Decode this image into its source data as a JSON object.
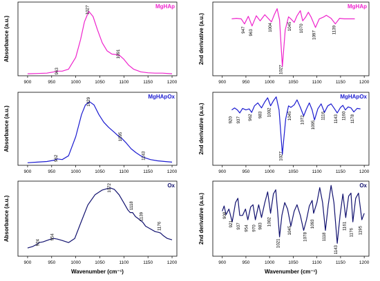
{
  "chart_data": [
    {
      "id": "p1",
      "type": "line",
      "title": "MgHAp",
      "ylabel": "Absorbance (a.u.)",
      "xlabel": "",
      "color": "#ee22cc",
      "xlim": [
        880,
        1210
      ],
      "ylim": [
        0,
        1.12
      ],
      "xticks": [
        900,
        950,
        1000,
        1050,
        1100,
        1150,
        1200
      ],
      "annotations": [
        {
          "label": "963",
          "x": 963,
          "y": 0.07
        },
        {
          "label": "1027",
          "x": 1027,
          "y": 1.0
        },
        {
          "label": "1091",
          "x": 1091,
          "y": 0.33
        }
      ],
      "series": [
        {
          "x": [
            900,
            920,
            940,
            955,
            963,
            972,
            985,
            1000,
            1010,
            1018,
            1027,
            1036,
            1045,
            1055,
            1065,
            1075,
            1085,
            1091,
            1100,
            1110,
            1120,
            1135,
            1150,
            1165,
            1180,
            1200
          ],
          "y": [
            0.03,
            0.035,
            0.04,
            0.06,
            0.07,
            0.07,
            0.1,
            0.28,
            0.55,
            0.82,
            0.98,
            0.9,
            0.7,
            0.5,
            0.38,
            0.33,
            0.32,
            0.31,
            0.25,
            0.16,
            0.1,
            0.06,
            0.045,
            0.04,
            0.04,
            0.03
          ]
        }
      ]
    },
    {
      "id": "p2",
      "type": "line",
      "title": "MgHAp",
      "ylabel": "2nd derivative (a.u.)",
      "xlabel": "",
      "color": "#ee22cc",
      "xlim": [
        880,
        1210
      ],
      "ylim": [
        -1.1,
        0.35
      ],
      "xticks": [
        900,
        950,
        1000,
        1050,
        1100,
        1150,
        1200
      ],
      "annotations": [
        {
          "label": "947",
          "x": 947,
          "y": -0.2
        },
        {
          "label": "963",
          "x": 963,
          "y": -0.25
        },
        {
          "label": "1004",
          "x": 1004,
          "y": -0.15
        },
        {
          "label": "1027",
          "x": 1027,
          "y": -0.98
        },
        {
          "label": "1045",
          "x": 1045,
          "y": -0.13
        },
        {
          "label": "1070",
          "x": 1070,
          "y": -0.17
        },
        {
          "label": "1097",
          "x": 1097,
          "y": -0.3
        },
        {
          "label": "1139",
          "x": 1139,
          "y": -0.2
        }
      ],
      "series": [
        {
          "x": [
            920,
            930,
            940,
            947,
            955,
            963,
            972,
            980,
            990,
            997,
            1004,
            1010,
            1016,
            1021,
            1027,
            1033,
            1040,
            1045,
            1052,
            1058,
            1065,
            1070,
            1076,
            1082,
            1088,
            1097,
            1105,
            1113,
            1120,
            1130,
            1139,
            1148,
            1158,
            1168,
            1180
          ],
          "y": [
            0.02,
            0.03,
            0.02,
            -0.08,
            0.07,
            -0.12,
            0.08,
            -0.02,
            0.1,
            0.03,
            -0.04,
            0.1,
            0.22,
            0.0,
            -0.92,
            -0.2,
            0.06,
            0.02,
            -0.05,
            0.08,
            0.18,
            -0.02,
            0.05,
            0.15,
            0.05,
            -0.15,
            0.02,
            0.05,
            0.09,
            0.03,
            -0.08,
            0.03,
            0.02,
            0.02,
            0.02
          ]
        }
      ]
    },
    {
      "id": "p3",
      "type": "line",
      "title": "MgHApOx",
      "ylabel": "Absorbance (a.u.)",
      "xlabel": "",
      "color": "#1a1ad0",
      "xlim": [
        880,
        1210
      ],
      "ylim": [
        0,
        1.15
      ],
      "xticks": [
        900,
        950,
        1000,
        1050,
        1100,
        1150,
        1200
      ],
      "annotations": [
        {
          "label": "962",
          "x": 962,
          "y": 0.11
        },
        {
          "label": "1029",
          "x": 1029,
          "y": 1.0
        },
        {
          "label": "1095",
          "x": 1095,
          "y": 0.45
        },
        {
          "label": "1143",
          "x": 1143,
          "y": 0.15
        }
      ],
      "series": [
        {
          "x": [
            900,
            920,
            940,
            955,
            962,
            972,
            985,
            1000,
            1012,
            1020,
            1029,
            1038,
            1048,
            1058,
            1068,
            1080,
            1090,
            1095,
            1105,
            1115,
            1125,
            1135,
            1143,
            1155,
            1170,
            1185,
            1200
          ],
          "y": [
            0.04,
            0.05,
            0.06,
            0.08,
            0.1,
            0.09,
            0.15,
            0.45,
            0.8,
            0.95,
            1.0,
            0.95,
            0.8,
            0.68,
            0.6,
            0.52,
            0.45,
            0.43,
            0.35,
            0.26,
            0.2,
            0.15,
            0.12,
            0.09,
            0.07,
            0.06,
            0.05
          ]
        }
      ]
    },
    {
      "id": "p4",
      "type": "line",
      "title": "MgHApOx",
      "ylabel": "2nd derivative (a.u.)",
      "xlabel": "",
      "color": "#1a1ad0",
      "xlim": [
        880,
        1210
      ],
      "ylim": [
        -1.1,
        0.35
      ],
      "xticks": [
        900,
        950,
        1000,
        1050,
        1100,
        1150,
        1200
      ],
      "annotations": [
        {
          "label": "920",
          "x": 920,
          "y": -0.2
        },
        {
          "label": "937",
          "x": 937,
          "y": -0.2
        },
        {
          "label": "962",
          "x": 962,
          "y": -0.15
        },
        {
          "label": "983",
          "x": 983,
          "y": -0.1
        },
        {
          "label": "1002",
          "x": 1002,
          "y": -0.05
        },
        {
          "label": "1027",
          "x": 1027,
          "y": -0.92
        },
        {
          "label": "1045",
          "x": 1045,
          "y": -0.12
        },
        {
          "label": "1072",
          "x": 1072,
          "y": -0.2
        },
        {
          "label": "1095",
          "x": 1095,
          "y": -0.3
        },
        {
          "label": "1116",
          "x": 1116,
          "y": -0.12
        },
        {
          "label": "1143",
          "x": 1143,
          "y": -0.18
        },
        {
          "label": "1160",
          "x": 1160,
          "y": -0.12
        },
        {
          "label": "1178",
          "x": 1178,
          "y": -0.18
        }
      ],
      "series": [
        {
          "x": [
            920,
            926,
            932,
            937,
            943,
            950,
            957,
            962,
            968,
            975,
            983,
            990,
            996,
            1002,
            1008,
            1014,
            1020,
            1027,
            1034,
            1040,
            1045,
            1052,
            1058,
            1065,
            1072,
            1078,
            1084,
            1090,
            1095,
            1102,
            1109,
            1116,
            1123,
            1130,
            1136,
            1143,
            1150,
            1155,
            1160,
            1166,
            1172,
            1178,
            1185,
            1192
          ],
          "y": [
            0.0,
            0.04,
            0.0,
            -0.06,
            0.03,
            0.0,
            0.02,
            -0.05,
            0.08,
            0.14,
            0.04,
            0.16,
            0.24,
            0.08,
            0.18,
            0.26,
            0.0,
            -0.88,
            -0.18,
            0.08,
            0.05,
            0.1,
            0.2,
            0.05,
            -0.12,
            0.02,
            0.14,
            0.0,
            -0.2,
            0.02,
            0.12,
            -0.05,
            0.08,
            0.12,
            0.04,
            -0.06,
            0.05,
            0.09,
            0.0,
            0.06,
            0.04,
            -0.04,
            0.03,
            0.02
          ]
        }
      ]
    },
    {
      "id": "p5",
      "type": "line",
      "title": "Ox",
      "ylabel": "Absorbance (a.u.)",
      "xlabel": "Wavenumber (cm⁻¹)",
      "color": "#10106e",
      "xlim": [
        880,
        1210
      ],
      "ylim": [
        0,
        1.1
      ],
      "xticks": [
        900,
        950,
        1000,
        1050,
        1100,
        1150,
        1200
      ],
      "annotations": [
        {
          "label": "924",
          "x": 924,
          "y": 0.2
        },
        {
          "label": "954",
          "x": 954,
          "y": 0.28
        },
        {
          "label": "1072",
          "x": 1072,
          "y": 1.0
        },
        {
          "label": "1118",
          "x": 1118,
          "y": 0.74
        },
        {
          "label": "1139",
          "x": 1139,
          "y": 0.58
        },
        {
          "label": "1176",
          "x": 1176,
          "y": 0.44
        }
      ],
      "series": [
        {
          "x": [
            900,
            910,
            918,
            924,
            932,
            940,
            948,
            954,
            962,
            972,
            985,
            998,
            1010,
            1025,
            1040,
            1055,
            1065,
            1072,
            1080,
            1090,
            1100,
            1108,
            1113,
            1118,
            1124,
            1130,
            1135,
            1139,
            1145,
            1155,
            1165,
            1172,
            1176,
            1182,
            1190,
            1200
          ],
          "y": [
            0.12,
            0.14,
            0.17,
            0.2,
            0.21,
            0.23,
            0.25,
            0.26,
            0.25,
            0.23,
            0.2,
            0.26,
            0.48,
            0.75,
            0.9,
            0.97,
            0.99,
            1.0,
            0.98,
            0.9,
            0.78,
            0.68,
            0.64,
            0.64,
            0.58,
            0.55,
            0.52,
            0.5,
            0.44,
            0.4,
            0.36,
            0.35,
            0.34,
            0.3,
            0.26,
            0.24
          ]
        }
      ]
    },
    {
      "id": "p6",
      "type": "line",
      "title": "Ox",
      "ylabel": "2nd derivative (a.u.)",
      "xlabel": "Wavenumber (cm⁻¹)",
      "color": "#10106e",
      "xlim": [
        880,
        1210
      ],
      "ylim": [
        -1.05,
        0.7
      ],
      "xticks": [
        900,
        950,
        1000,
        1050,
        1100,
        1150,
        1200
      ],
      "annotations": [
        {
          "label": "908",
          "x": 908,
          "y": -0.1
        },
        {
          "label": "921",
          "x": 921,
          "y": -0.3
        },
        {
          "label": "937",
          "x": 937,
          "y": -0.35
        },
        {
          "label": "954",
          "x": 954,
          "y": -0.4
        },
        {
          "label": "970",
          "x": 970,
          "y": -0.4
        },
        {
          "label": "983",
          "x": 983,
          "y": -0.35
        },
        {
          "label": "1002",
          "x": 1002,
          "y": -0.25
        },
        {
          "label": "1021",
          "x": 1021,
          "y": -0.75
        },
        {
          "label": "1045",
          "x": 1045,
          "y": -0.45
        },
        {
          "label": "1078",
          "x": 1078,
          "y": -0.6
        },
        {
          "label": "1093",
          "x": 1093,
          "y": -0.3
        },
        {
          "label": "1118",
          "x": 1118,
          "y": -0.6
        },
        {
          "label": "1143",
          "x": 1143,
          "y": -0.9
        },
        {
          "label": "1161",
          "x": 1161,
          "y": -0.35
        },
        {
          "label": "1176",
          "x": 1176,
          "y": -0.5
        },
        {
          "label": "1195",
          "x": 1195,
          "y": -0.45
        }
      ],
      "series": [
        {
          "x": [
            900,
            904,
            908,
            914,
            921,
            928,
            933,
            937,
            943,
            949,
            954,
            960,
            965,
            970,
            977,
            983,
            990,
            996,
            1002,
            1008,
            1013,
            1017,
            1021,
            1026,
            1032,
            1038,
            1045,
            1052,
            1058,
            1065,
            1072,
            1078,
            1084,
            1090,
            1093,
            1100,
            1106,
            1112,
            1118,
            1124,
            1130,
            1136,
            1143,
            1149,
            1155,
            1161,
            1167,
            1172,
            1176,
            1182,
            1188,
            1195,
            1200
          ],
          "y": [
            0.0,
            0.12,
            -0.08,
            0.05,
            -0.25,
            0.2,
            0.3,
            -0.1,
            -0.1,
            0.05,
            -0.2,
            0.1,
            0.15,
            -0.2,
            0.15,
            -0.15,
            0.2,
            0.45,
            -0.05,
            0.4,
            0.5,
            0.0,
            -0.6,
            -0.1,
            0.2,
            0.05,
            -0.35,
            0.0,
            0.15,
            -0.1,
            -0.45,
            -0.2,
            0.12,
            0.25,
            -0.05,
            0.2,
            0.55,
            0.2,
            -0.45,
            0.15,
            0.6,
            0.2,
            -0.75,
            -0.1,
            0.4,
            -0.15,
            0.35,
            0.42,
            -0.25,
            0.3,
            0.42,
            -0.2,
            -0.05
          ]
        }
      ]
    }
  ]
}
